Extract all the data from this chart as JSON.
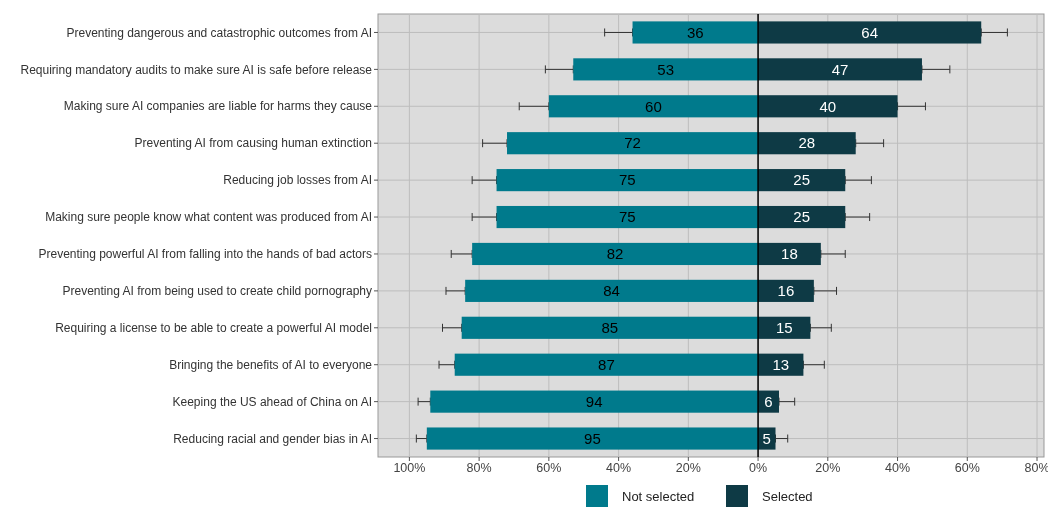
{
  "chart_data": {
    "type": "bar",
    "orientation": "horizontal",
    "grid": true,
    "legend": "bottom",
    "categories": [
      "Preventing dangerous and catastrophic outcomes from AI",
      "Requiring mandatory audits to make sure AI is safe before release",
      "Making sure AI companies are liable for harms they cause",
      "Preventing AI from causing human extinction",
      "Reducing job losses from AI",
      "Making sure people know what content was produced from AI",
      "Preventing powerful AI from falling into the hands of bad actors",
      "Preventing AI from being used to create child pornography",
      "Requiring a license to be able to create a powerful AI model",
      "Bringing the benefits of AI to everyone",
      "Keeping the US ahead of China on AI",
      "Reducing racial and gender bias in AI"
    ],
    "xlim": [
      -109,
      82
    ],
    "xticks": [
      {
        "value": -100,
        "label": "100%"
      },
      {
        "value": -80,
        "label": "80%"
      },
      {
        "value": -60,
        "label": "60%"
      },
      {
        "value": -40,
        "label": "40%"
      },
      {
        "value": -20,
        "label": "20%"
      },
      {
        "value": 0,
        "label": "0%"
      },
      {
        "value": 20,
        "label": "20%"
      },
      {
        "value": 40,
        "label": "40%"
      },
      {
        "value": 60,
        "label": "60%"
      },
      {
        "value": 80,
        "label": "80%"
      }
    ],
    "ref_lines": [
      {
        "axis": "x",
        "value": 0,
        "color": "#000000"
      }
    ],
    "series": [
      {
        "name": "Not selected",
        "color": "#007a8c",
        "values": [
          36,
          53,
          60,
          72,
          75,
          75,
          82,
          84,
          85,
          87,
          94,
          95
        ],
        "base": [
          -36,
          -53,
          -60,
          -72,
          -75,
          -75,
          -82,
          -84,
          -85,
          -87,
          -94,
          -95
        ],
        "value_labels": [
          "36",
          "53",
          "60",
          "72",
          "75",
          "75",
          "82",
          "84",
          "85",
          "87",
          "94",
          "95"
        ],
        "errors": [
          [
            -44,
            -36
          ],
          [
            -61,
            -53
          ],
          [
            -68.5,
            -60
          ],
          [
            -79,
            -72
          ],
          [
            -82,
            -75
          ],
          [
            -82,
            -75
          ],
          [
            -88,
            -82
          ],
          [
            -89.5,
            -84
          ],
          [
            -90.5,
            -85
          ],
          [
            -91.5,
            -87
          ],
          [
            -97.5,
            -94
          ],
          [
            -98,
            -95
          ]
        ]
      },
      {
        "name": "Selected",
        "color": "#0e3a45",
        "values": [
          64,
          47,
          40,
          28,
          25,
          25,
          18,
          16,
          15,
          13,
          6,
          5
        ],
        "value_labels": [
          "64",
          "47",
          "40",
          "28",
          "25",
          "25",
          "18",
          "16",
          "15",
          "13",
          "6",
          "5"
        ],
        "errors": [
          [
            64,
            71.5
          ],
          [
            47,
            55
          ],
          [
            40,
            48
          ],
          [
            28,
            36
          ],
          [
            25,
            32.5
          ],
          [
            25,
            32
          ],
          [
            18,
            25
          ],
          [
            16,
            22.5
          ],
          [
            15,
            21
          ],
          [
            13,
            19
          ],
          [
            6,
            10.5
          ],
          [
            5,
            8.5
          ]
        ]
      }
    ]
  }
}
